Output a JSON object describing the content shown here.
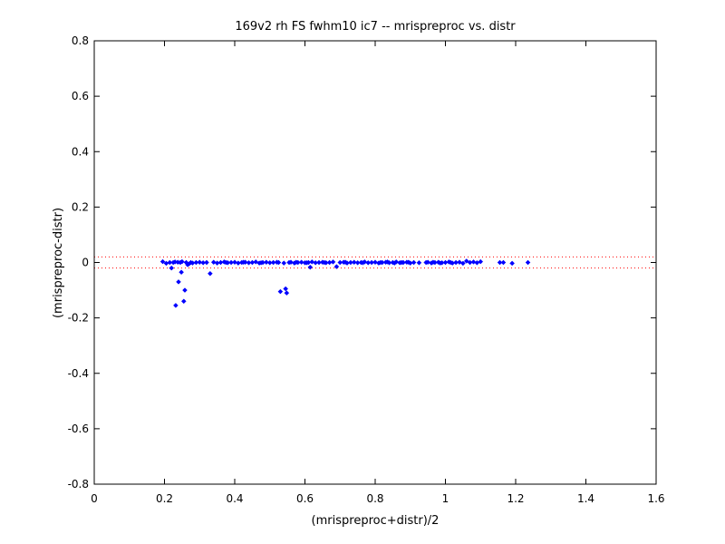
{
  "colors": {
    "points": "#0000ff",
    "ref_lines": "#ff0000",
    "axes": "#000000",
    "background": "#ffffff"
  },
  "chart_data": {
    "type": "scatter",
    "title": "169v2 rh FS fwhm10 ic7 -- mrispreproc vs. distr",
    "xlabel": "(mrispreproc+distr)/2",
    "ylabel": "(mrispreproc-distr)",
    "xlim": [
      0,
      1.6
    ],
    "ylim": [
      -0.8,
      0.8
    ],
    "xticks": [
      0,
      0.2,
      0.4,
      0.6,
      0.8,
      1,
      1.2,
      1.4,
      1.6
    ],
    "xtick_labels": [
      "0",
      "0.2",
      "0.4",
      "0.6",
      "0.8",
      "1",
      "1.2",
      "1.4",
      "1.6"
    ],
    "yticks": [
      -0.8,
      -0.6,
      -0.4,
      -0.2,
      0,
      0.2,
      0.4,
      0.6,
      0.8
    ],
    "ytick_labels": [
      "-0.8",
      "-0.6",
      "-0.4",
      "-0.2",
      "0",
      "0.2",
      "0.4",
      "0.6",
      "0.8"
    ],
    "grid": false,
    "marker": "diamond",
    "reference_lines": [
      {
        "axis": "y",
        "value": 0.02,
        "style": "dotted"
      },
      {
        "axis": "y",
        "value": -0.02,
        "style": "dotted"
      }
    ],
    "series": [
      {
        "points": [
          [
            0.195,
            0.003
          ],
          [
            0.205,
            -0.003
          ],
          [
            0.215,
            0.0
          ],
          [
            0.22,
            -0.02
          ],
          [
            0.225,
            0.0
          ],
          [
            0.23,
            0.002
          ],
          [
            0.232,
            -0.155
          ],
          [
            0.238,
            0.001
          ],
          [
            0.24,
            -0.07
          ],
          [
            0.245,
            0.0
          ],
          [
            0.248,
            -0.035
          ],
          [
            0.25,
            0.003
          ],
          [
            0.255,
            -0.14
          ],
          [
            0.258,
            -0.1
          ],
          [
            0.262,
            0.0
          ],
          [
            0.266,
            -0.008
          ],
          [
            0.27,
            -0.005
          ],
          [
            0.275,
            0.0
          ],
          [
            0.28,
            -0.002
          ],
          [
            0.29,
            0.0
          ],
          [
            0.3,
            0.001
          ],
          [
            0.31,
            -0.001
          ],
          [
            0.32,
            0.0
          ],
          [
            0.33,
            -0.04
          ],
          [
            0.34,
            0.001
          ],
          [
            0.35,
            -0.002
          ],
          [
            0.36,
            0.0
          ],
          [
            0.37,
            0.002
          ],
          [
            0.38,
            -0.001
          ],
          [
            0.39,
            0.0
          ],
          [
            0.4,
            0.001
          ],
          [
            0.41,
            -0.002
          ],
          [
            0.42,
            0.0
          ],
          [
            0.43,
            0.001
          ],
          [
            0.44,
            -0.001
          ],
          [
            0.45,
            0.0
          ],
          [
            0.46,
            0.002
          ],
          [
            0.47,
            -0.002
          ],
          [
            0.48,
            0.0
          ],
          [
            0.49,
            0.001
          ],
          [
            0.5,
            -0.001
          ],
          [
            0.51,
            0.0
          ],
          [
            0.52,
            0.001
          ],
          [
            0.53,
            -0.105
          ],
          [
            0.54,
            -0.002
          ],
          [
            0.545,
            -0.095
          ],
          [
            0.548,
            -0.11
          ],
          [
            0.555,
            0.0
          ],
          [
            0.56,
            0.001
          ],
          [
            0.57,
            -0.002
          ],
          [
            0.58,
            0.0
          ],
          [
            0.59,
            0.001
          ],
          [
            0.6,
            -0.001
          ],
          [
            0.61,
            0.0
          ],
          [
            0.62,
            0.002
          ],
          [
            0.63,
            -0.001
          ],
          [
            0.64,
            0.0
          ],
          [
            0.65,
            0.001
          ],
          [
            0.66,
            -0.001
          ],
          [
            0.67,
            0.0
          ],
          [
            0.68,
            0.002
          ],
          [
            0.69,
            -0.015
          ],
          [
            0.7,
            0.0
          ],
          [
            0.71,
            0.001
          ],
          [
            0.72,
            -0.002
          ],
          [
            0.73,
            0.0
          ],
          [
            0.74,
            0.001
          ],
          [
            0.75,
            -0.001
          ],
          [
            0.76,
            0.0
          ],
          [
            0.77,
            0.002
          ],
          [
            0.78,
            -0.001
          ],
          [
            0.79,
            0.0
          ],
          [
            0.8,
            0.001
          ],
          [
            0.81,
            -0.002
          ],
          [
            0.82,
            0.0
          ],
          [
            0.83,
            0.001
          ],
          [
            0.84,
            -0.001
          ],
          [
            0.85,
            0.0
          ],
          [
            0.86,
            0.002
          ],
          [
            0.87,
            -0.001
          ],
          [
            0.88,
            0.0
          ],
          [
            0.89,
            0.001
          ],
          [
            0.9,
            -0.002
          ],
          [
            0.91,
            0.0
          ],
          [
            0.95,
            0.001
          ],
          [
            0.96,
            -0.002
          ],
          [
            0.97,
            0.0
          ],
          [
            0.98,
            0.001
          ],
          [
            0.99,
            -0.001
          ],
          [
            1.0,
            0.0
          ],
          [
            1.01,
            0.002
          ],
          [
            1.02,
            -0.002
          ],
          [
            1.03,
            0.0
          ],
          [
            1.04,
            0.001
          ],
          [
            1.05,
            -0.003
          ],
          [
            1.06,
            0.005
          ],
          [
            1.07,
            0.0
          ],
          [
            1.08,
            0.002
          ],
          [
            1.09,
            -0.001
          ],
          [
            1.1,
            0.003
          ],
          [
            1.155,
            0.0
          ],
          [
            1.165,
            0.0
          ],
          [
            1.19,
            -0.003
          ],
          [
            1.235,
            0.0
          ],
          [
            0.375,
            0.0
          ],
          [
            0.425,
            0.001
          ],
          [
            0.475,
            -0.001
          ],
          [
            0.525,
            0.0
          ],
          [
            0.575,
            0.001
          ],
          [
            0.605,
            -0.001
          ],
          [
            0.615,
            -0.017
          ],
          [
            0.655,
            0.0
          ],
          [
            0.715,
            0.001
          ],
          [
            0.765,
            -0.001
          ],
          [
            0.815,
            0.0
          ],
          [
            0.835,
            0.002
          ],
          [
            0.855,
            -0.002
          ],
          [
            0.875,
            0.0
          ],
          [
            0.895,
            0.001
          ],
          [
            0.925,
            -0.001
          ],
          [
            0.945,
            0.0
          ],
          [
            0.965,
            0.001
          ],
          [
            0.985,
            -0.002
          ],
          [
            1.015,
            0.0
          ]
        ]
      }
    ]
  }
}
